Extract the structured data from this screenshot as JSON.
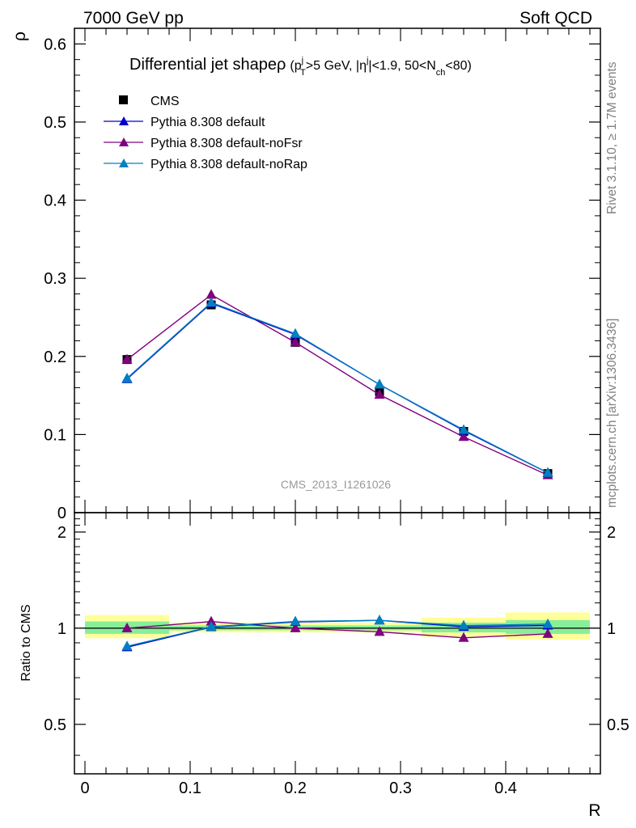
{
  "header": {
    "left": "7000 GeV pp",
    "right": "Soft QCD"
  },
  "side_labels": {
    "rivet": "Rivet 3.1.10, ≥ 1.7M events",
    "mcplots": "mcplots.cern.ch [arXiv:1306.3436]"
  },
  "chart_data": [
    {
      "type": "line",
      "title": "Differential jet shape ρ (p_T^j > 5 GeV, |η^j| < 1.9, 50 < N_ch < 80)",
      "title_parts": {
        "main": "Differential jet shape",
        "rho": "ρ",
        "p": "(p",
        "p_sup": "j",
        "p_sub": "T",
        "gev": ">5 GeV, |",
        "eta": "η",
        "eta_sup": "j",
        "nch": "|<1.9, 50<N",
        "nch_sub": "ch",
        "end": "<80)"
      },
      "watermark": "CMS_2013_I1261026",
      "ylabel": "ρ",
      "xlim": [
        -0.01,
        0.49
      ],
      "ylim": [
        0,
        0.62
      ],
      "yticks": [
        0,
        0.1,
        0.2,
        0.3,
        0.4,
        0.5,
        0.6
      ],
      "ytick_labels": [
        "0",
        "0.1",
        "0.2",
        "0.3",
        "0.4",
        "0.5",
        "0.6"
      ],
      "legend": {
        "position": "top-left"
      },
      "x": [
        0.04,
        0.12,
        0.2,
        0.28,
        0.36,
        0.44
      ],
      "series": [
        {
          "name": "CMS",
          "marker": "square",
          "color": "#000000",
          "values": [
            0.196,
            0.266,
            0.218,
            0.155,
            0.104,
            0.05
          ]
        },
        {
          "name": "Pythia 8.308 default",
          "marker": "triangle",
          "color": "#0000cc",
          "values": [
            0.171,
            0.268,
            0.228,
            0.164,
            0.105,
            0.051
          ]
        },
        {
          "name": "Pythia 8.308 default-noFsr",
          "marker": "triangle",
          "color": "#800080",
          "values": [
            0.196,
            0.279,
            0.218,
            0.151,
            0.097,
            0.048
          ]
        },
        {
          "name": "Pythia 8.308 default-noRap",
          "marker": "triangle",
          "color": "#0080c0",
          "values": [
            0.172,
            0.269,
            0.229,
            0.164,
            0.106,
            0.051
          ]
        }
      ]
    },
    {
      "type": "line",
      "ylabel": "Ratio to CMS",
      "xlabel": "R",
      "xlim": [
        -0.01,
        0.49
      ],
      "ylim": [
        0.35,
        2.3
      ],
      "log_y": true,
      "yticks": [
        0.5,
        1,
        2
      ],
      "ytick_labels": [
        "0.5",
        "1",
        "2"
      ],
      "xticks": [
        0,
        0.1,
        0.2,
        0.3,
        0.4
      ],
      "xtick_labels": [
        "0",
        "0.1",
        "0.2",
        "0.3",
        "0.4"
      ],
      "x": [
        0.04,
        0.12,
        0.2,
        0.28,
        0.36,
        0.44
      ],
      "bands": [
        {
          "x_low": 0.0,
          "x_high": 0.08,
          "yellow": [
            0.93,
            1.1
          ],
          "green": [
            0.96,
            1.05
          ]
        },
        {
          "x_low": 0.08,
          "x_high": 0.16,
          "yellow": [
            0.97,
            1.04
          ],
          "green": [
            0.985,
            1.02
          ]
        },
        {
          "x_low": 0.16,
          "x_high": 0.24,
          "yellow": [
            0.97,
            1.04
          ],
          "green": [
            0.985,
            1.02
          ]
        },
        {
          "x_low": 0.24,
          "x_high": 0.32,
          "yellow": [
            0.97,
            1.04
          ],
          "green": [
            0.985,
            1.02
          ]
        },
        {
          "x_low": 0.32,
          "x_high": 0.4,
          "yellow": [
            0.94,
            1.08
          ],
          "green": [
            0.97,
            1.04
          ]
        },
        {
          "x_low": 0.4,
          "x_high": 0.48,
          "yellow": [
            0.92,
            1.12
          ],
          "green": [
            0.96,
            1.06
          ]
        }
      ],
      "band_colors": {
        "yellow": "#ffff99",
        "green": "#88ee99"
      },
      "series": [
        {
          "name": "Pythia 8.308 default",
          "marker": "triangle",
          "color": "#0000cc",
          "values": [
            0.872,
            1.008,
            1.046,
            1.058,
            1.01,
            1.02
          ]
        },
        {
          "name": "Pythia 8.308 default-noFsr",
          "marker": "triangle",
          "color": "#800080",
          "values": [
            1.0,
            1.049,
            1.0,
            0.974,
            0.933,
            0.96
          ]
        },
        {
          "name": "Pythia 8.308 default-noRap",
          "marker": "triangle",
          "color": "#0080c0",
          "values": [
            0.878,
            1.011,
            1.05,
            1.058,
            1.019,
            1.03
          ]
        }
      ]
    }
  ]
}
